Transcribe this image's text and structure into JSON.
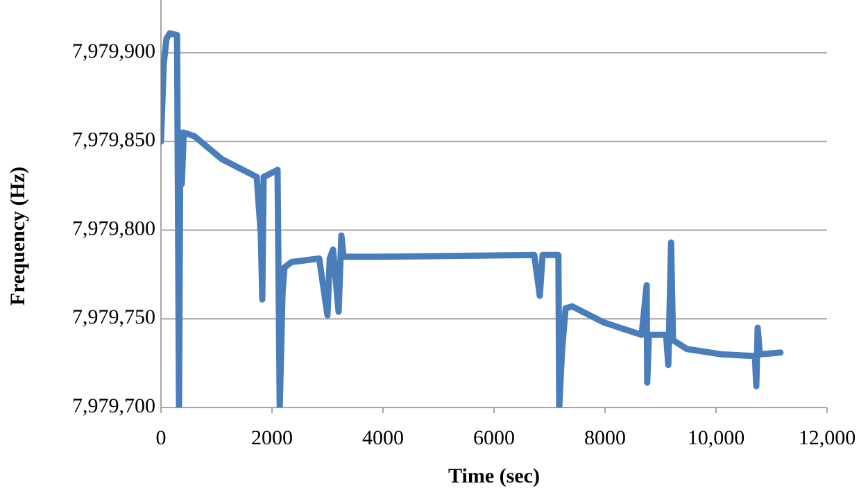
{
  "chart_data": {
    "type": "line",
    "x_label": "Time (sec)",
    "y_label": "Frequency (Hz)",
    "xlim": [
      0,
      12000
    ],
    "xticks": [
      0,
      2000,
      4000,
      6000,
      8000,
      {
        "value": 10000,
        "label": "10,000"
      },
      {
        "value": 12000,
        "label": "12,000"
      }
    ],
    "ylim": [
      7979700,
      7979929
    ],
    "yticks": [
      {
        "value": 7979700,
        "label": "7,979,700"
      },
      {
        "value": 7979750,
        "label": "7,979,750"
      },
      {
        "value": 7979800,
        "label": "7,979,800"
      },
      {
        "value": 7979850,
        "label": "7,979,850"
      },
      {
        "value": 7979900,
        "label": "7,979,900"
      }
    ],
    "grid": true,
    "series": [
      {
        "color": "#4a7ebb",
        "x": [
          0,
          50,
          100,
          160,
          290,
          325,
          350,
          375,
          410,
          600,
          1100,
          1725,
          1800,
          1825,
          1850,
          2100,
          2140,
          2190,
          2225,
          2350,
          2850,
          3000,
          3040,
          3100,
          3200,
          3250,
          3290,
          3850,
          6725,
          6825,
          6875,
          7160,
          7175,
          7225,
          7290,
          7410,
          7975,
          8660,
          8750,
          8760,
          8790,
          9100,
          9140,
          9190,
          9225,
          9475,
          10100,
          10700,
          10725,
          10750,
          10790,
          11160
        ],
        "values": [
          7979850,
          7979894,
          7979908,
          7979911,
          7979910,
          7979700,
          7979855,
          7979826,
          7979855,
          7979853,
          7979840,
          7979830,
          7979797,
          7979761,
          7979830,
          7979834,
          7979700,
          7979765,
          7979779,
          7979782,
          7979784,
          7979752,
          7979784,
          7979789,
          7979754,
          7979797,
          7979785,
          7979785,
          7979786,
          7979763,
          7979786,
          7979786,
          7979700,
          7979732,
          7979756,
          7979757,
          7979748,
          7979741,
          7979769,
          7979714,
          7979741,
          7979741,
          7979724,
          7979793,
          7979738,
          7979733,
          7979730,
          7979729,
          7979712,
          7979745,
          7979730,
          7979731
        ]
      }
    ]
  }
}
